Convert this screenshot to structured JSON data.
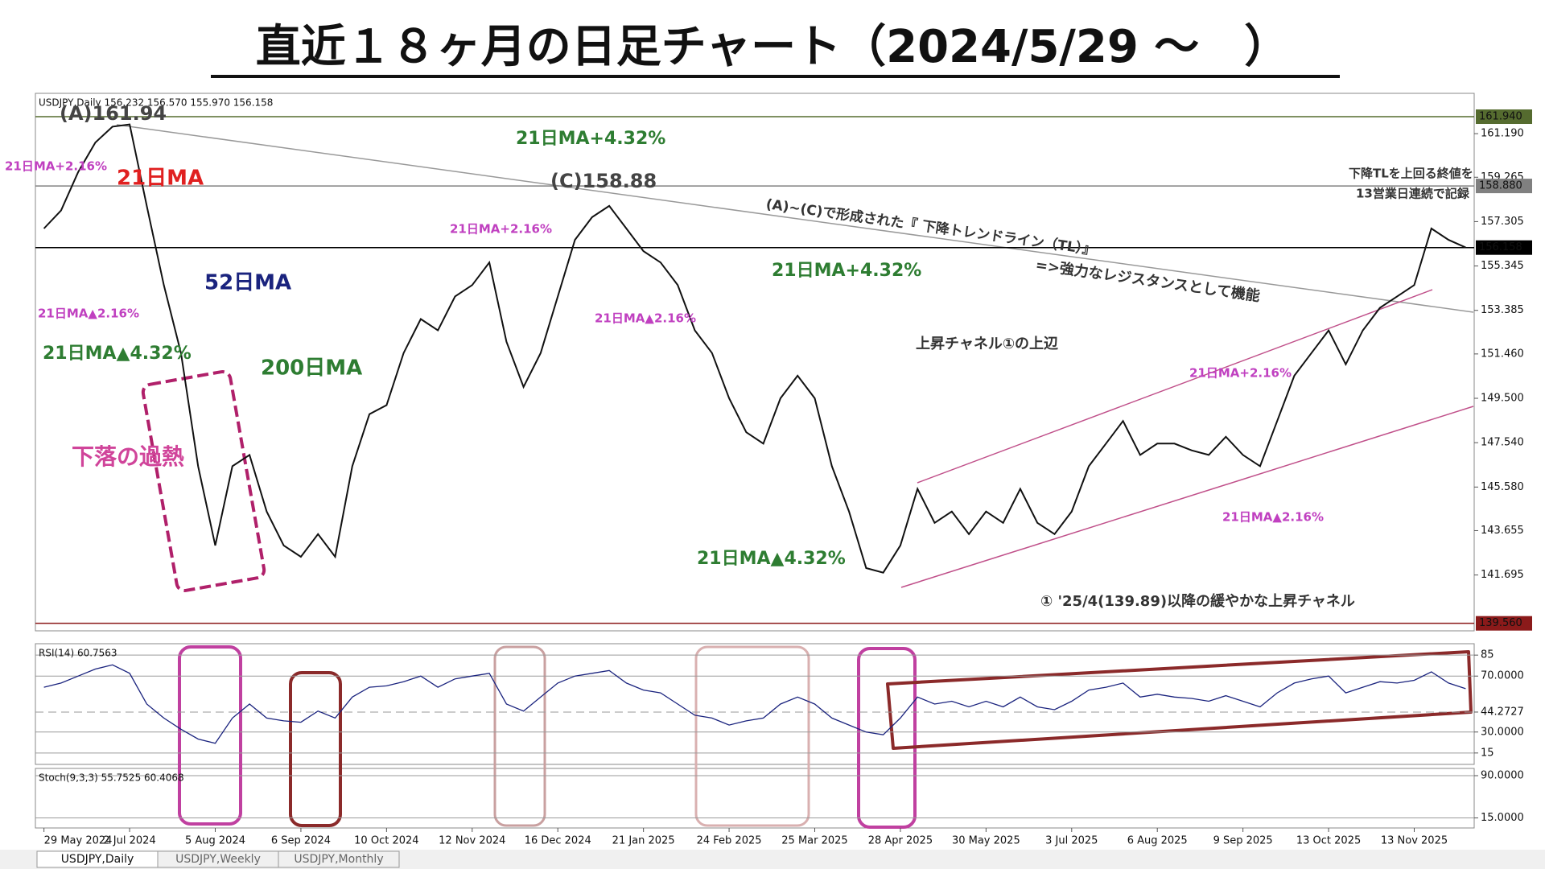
{
  "title": "直近１８ヶ月の日足チャート（2024/5/29 ～　）",
  "header": "USDJPY,Daily 156.232 156.570 155.970 156.158",
  "tabs": [
    "USDJPY,Daily",
    "USDJPY,Weekly",
    "USDJPY,Monthly"
  ],
  "annotations": [
    {
      "text": "(A)161.94",
      "color": "#444444"
    },
    {
      "text": "21日MA+2.16%",
      "color": "#c040c0"
    },
    {
      "text": "21日MA",
      "color": "#e02020"
    },
    {
      "text": "21日MA+4.32%",
      "color": "#2e7d32"
    },
    {
      "text": "(C)158.88",
      "color": "#444444"
    },
    {
      "text": "21日MA+2.16%",
      "color": "#c040c0"
    },
    {
      "text": "(A)~(C)で形成された『 下降トレンドライン（TL）』",
      "color": "#333333"
    },
    {
      "text": "=>強力なレジスタンスとして機能",
      "color": "#333333"
    },
    {
      "text": "下降TLを上回る終値を",
      "color": "#333333"
    },
    {
      "text": "13営業日連続で記録",
      "color": "#333333"
    },
    {
      "text": "52日MA",
      "color": "#1a237e"
    },
    {
      "text": "21日MA+4.32%",
      "color": "#2e7d32"
    },
    {
      "text": "21日MA▲2.16%",
      "color": "#c040c0"
    },
    {
      "text": "21日MA▲2.16%",
      "color": "#c040c0"
    },
    {
      "text": "21日MA▲4.32%",
      "color": "#2e7d32"
    },
    {
      "text": "200日MA",
      "color": "#2e7d32"
    },
    {
      "text": "上昇チャネル①の上辺",
      "color": "#333333"
    },
    {
      "text": "21日MA+2.16%",
      "color": "#c040c0"
    },
    {
      "text": "下落の過熱",
      "color": "#d0449a"
    },
    {
      "text": "21日MA▲2.16%",
      "color": "#c040c0"
    },
    {
      "text": "21日MA▲4.32%",
      "color": "#2e7d32"
    },
    {
      "text": "① '25/4(139.89)以降の緩やかな上昇チャネル",
      "color": "#333333"
    }
  ],
  "chart_data": [
    {
      "type": "line",
      "categories": [
        "29 May 2024",
        null,
        null,
        null,
        null,
        "2 Jul 2024",
        null,
        null,
        null,
        null,
        "5 Aug 2024",
        null,
        null,
        null,
        null,
        "6 Sep 2024",
        null,
        null,
        null,
        null,
        "10 Oct 2024",
        null,
        null,
        null,
        null,
        "12 Nov 2024",
        null,
        null,
        null,
        null,
        "16 Dec 2024",
        null,
        null,
        null,
        null,
        "21 Jan 2025",
        null,
        null,
        null,
        null,
        "24 Feb 2025",
        null,
        null,
        null,
        null,
        "25 Mar 2025",
        null,
        null,
        null,
        null,
        "28 Apr 2025",
        null,
        null,
        null,
        null,
        "30 May 2025",
        null,
        null,
        null,
        null,
        "3 Jul 2025",
        null,
        null,
        null,
        null,
        "6 Aug 2025",
        null,
        null,
        null,
        null,
        "9 Sep 2025",
        null,
        null,
        null,
        null,
        "13 Oct 2025",
        null,
        null,
        null,
        null,
        "13 Nov 2025",
        null,
        null,
        null
      ],
      "series": [
        {
          "name": "USDJPY",
          "color": "#111111",
          "values": [
            157.0,
            157.8,
            159.5,
            160.8,
            161.5,
            161.6,
            158.0,
            154.5,
            151.5,
            146.5,
            143.0,
            146.5,
            147.0,
            144.5,
            143.0,
            142.5,
            143.5,
            142.5,
            146.5,
            148.8,
            149.2,
            151.5,
            153.0,
            152.5,
            154.0,
            154.5,
            155.5,
            152.0,
            150.0,
            151.5,
            154.0,
            156.5,
            157.5,
            158.0,
            157.0,
            156.0,
            155.5,
            154.5,
            152.5,
            151.5,
            149.5,
            148.0,
            147.5,
            149.5,
            150.5,
            149.5,
            146.5,
            144.5,
            142.0,
            141.8,
            143.0,
            145.5,
            144.0,
            144.5,
            143.5,
            144.5,
            144.0,
            145.5,
            144.0,
            143.5,
            144.5,
            146.5,
            147.5,
            148.5,
            147.0,
            147.5,
            147.5,
            147.2,
            147.0,
            147.8,
            147.0,
            146.5,
            148.5,
            150.5,
            151.5,
            152.5,
            151.0,
            152.5,
            153.5,
            154.0,
            154.5,
            157.0,
            156.5,
            156.16
          ]
        }
      ],
      "ylim": [
        139.3,
        162.9
      ],
      "yticks": [
        {
          "value": 161.19,
          "label": "161.190"
        },
        {
          "value": 159.265,
          "label": "159.265"
        },
        {
          "value": 157.305,
          "label": "157.305"
        },
        {
          "value": 155.345,
          "label": "155.345"
        },
        {
          "value": 153.385,
          "label": "153.385"
        },
        {
          "value": 151.46,
          "label": "151.460"
        },
        {
          "value": 149.5,
          "label": "149.500"
        },
        {
          "value": 147.54,
          "label": "147.540"
        },
        {
          "value": 145.58,
          "label": "145.580"
        },
        {
          "value": 143.655,
          "label": "143.655"
        },
        {
          "value": 141.695,
          "label": "141.695"
        }
      ],
      "price_labels": [
        {
          "value": 161.94,
          "label": "161.940",
          "color": "#556b2f"
        },
        {
          "value": 158.88,
          "label": "158.880",
          "color": "#808080"
        },
        {
          "value": 156.158,
          "label": "156.158",
          "color": "#000000"
        },
        {
          "value": 139.56,
          "label": "139.560",
          "color": "#8b1a1a"
        }
      ]
    },
    {
      "type": "line",
      "label": "RSI(14) 60.7563",
      "series": [
        {
          "name": "RSI",
          "color": "#1a237e",
          "values": [
            62,
            65,
            70,
            75,
            78,
            72,
            50,
            40,
            32,
            25,
            22,
            40,
            50,
            40,
            38,
            37,
            45,
            40,
            55,
            62,
            63,
            66,
            70,
            62,
            68,
            70,
            72,
            50,
            45,
            55,
            65,
            70,
            72,
            74,
            65,
            60,
            58,
            50,
            42,
            40,
            35,
            38,
            40,
            50,
            55,
            50,
            40,
            35,
            30,
            28,
            40,
            55,
            50,
            52,
            48,
            52,
            48,
            55,
            48,
            46,
            52,
            60,
            62,
            65,
            55,
            57,
            55,
            54,
            52,
            56,
            52,
            48,
            58,
            65,
            68,
            70,
            58,
            62,
            66,
            65,
            67,
            73,
            65,
            61
          ]
        }
      ],
      "ylim": [
        8,
        92
      ],
      "yticks": [
        85,
        {
          "value": 70,
          "label": "70.0000"
        },
        {
          "value": 44.2727,
          "label": "44.2727"
        },
        {
          "value": 30,
          "label": "30.0000"
        },
        15
      ]
    },
    {
      "type": "line",
      "label": "Stoch(9,3,3) 55.7525 60.4068",
      "ylim": [
        0,
        100
      ],
      "yticks": [
        {
          "value": 90,
          "label": "90.0000"
        },
        {
          "value": 15,
          "label": "15.0000"
        }
      ]
    }
  ]
}
